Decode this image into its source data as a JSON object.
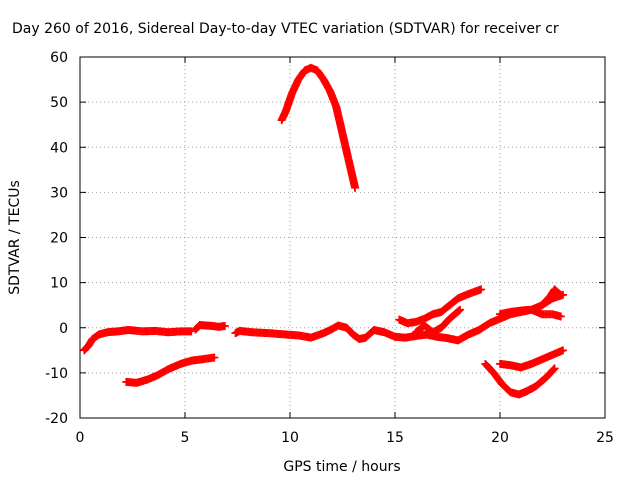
{
  "chart_data": {
    "type": "scatter",
    "title": "Day 260 of 2016, Sidereal Day-to-day VTEC variation (SDTVAR) for receiver cr",
    "xlabel": "GPS time / hours",
    "ylabel": "SDTVAR / TECUs",
    "xlim": [
      0,
      25
    ],
    "ylim": [
      -20,
      60
    ],
    "xticks": [
      "0",
      "5",
      "10",
      "15",
      "20",
      "25"
    ],
    "yticks": [
      "-20",
      "-10",
      "0",
      "10",
      "20",
      "30",
      "40",
      "50",
      "60"
    ],
    "grid": true,
    "marker": "plus",
    "color": "#ff0000",
    "series": [
      {
        "points": [
          [
            0.2,
            -5
          ],
          [
            0.4,
            -4
          ],
          [
            0.6,
            -2.5
          ],
          [
            0.9,
            -1.5
          ],
          [
            1.3,
            -1
          ],
          [
            1.8,
            -0.8
          ],
          [
            2.3,
            -0.5
          ],
          [
            3,
            -0.8
          ],
          [
            3.6,
            -0.7
          ],
          [
            4.2,
            -1
          ],
          [
            4.8,
            -0.8
          ],
          [
            5.3,
            -0.8
          ]
        ]
      },
      {
        "points": [
          [
            5.5,
            -0.4
          ],
          [
            5.7,
            0.6
          ],
          [
            6,
            0.5
          ],
          [
            6.3,
            0.4
          ],
          [
            6.6,
            0.2
          ],
          [
            6.9,
            0.4
          ]
        ]
      },
      {
        "points": [
          [
            7.4,
            -1.2
          ],
          [
            7.6,
            -0.7
          ],
          [
            8.2,
            -1
          ],
          [
            9,
            -1.2
          ],
          [
            9.8,
            -1.5
          ],
          [
            10.4,
            -1.7
          ],
          [
            11,
            -2.2
          ],
          [
            11.6,
            -1.2
          ],
          [
            12.0,
            -0.3
          ],
          [
            12.3,
            0.5
          ],
          [
            12.7,
            0
          ],
          [
            13.0,
            -1.5
          ],
          [
            13.3,
            -2.5
          ],
          [
            13.6,
            -2.2
          ],
          [
            14,
            -0.5
          ],
          [
            14.5,
            -1
          ],
          [
            15,
            -2
          ],
          [
            15.5,
            -2.2
          ],
          [
            16,
            -1.8
          ],
          [
            16.5,
            -1.5
          ],
          [
            17,
            -2
          ],
          [
            17.5,
            -2.3
          ],
          [
            18.0,
            -2.8
          ],
          [
            18.5,
            -1.5
          ],
          [
            19,
            -0.5
          ],
          [
            19.5,
            1
          ],
          [
            20,
            2
          ],
          [
            20.5,
            3
          ],
          [
            21,
            3.5
          ],
          [
            21.5,
            4
          ],
          [
            22,
            3
          ],
          [
            22.5,
            3
          ],
          [
            22.9,
            2.5
          ]
        ]
      },
      {
        "points": [
          [
            9.6,
            46
          ],
          [
            9.8,
            48
          ],
          [
            10.1,
            52
          ],
          [
            10.4,
            55
          ],
          [
            10.7,
            57
          ],
          [
            11.0,
            57.6
          ],
          [
            11.3,
            57
          ],
          [
            11.6,
            55
          ],
          [
            11.9,
            52.5
          ],
          [
            12.2,
            49
          ],
          [
            12.4,
            45
          ],
          [
            12.6,
            41
          ],
          [
            12.8,
            37
          ],
          [
            13.0,
            33
          ],
          [
            13.1,
            31
          ]
        ]
      },
      {
        "points": [
          [
            2.2,
            -12
          ],
          [
            2.7,
            -12.2
          ],
          [
            3.2,
            -11.5
          ],
          [
            3.7,
            -10.5
          ],
          [
            4.2,
            -9.2
          ],
          [
            4.8,
            -8
          ],
          [
            5.3,
            -7.3
          ],
          [
            5.8,
            -7
          ],
          [
            6.4,
            -6.6
          ]
        ]
      },
      {
        "points": [
          [
            15.2,
            1.8
          ],
          [
            15.6,
            1
          ],
          [
            16,
            1.3
          ],
          [
            16.4,
            2
          ],
          [
            16.8,
            3
          ],
          [
            17.2,
            3.5
          ],
          [
            17.6,
            5
          ],
          [
            18,
            6.5
          ],
          [
            18.4,
            7.3
          ],
          [
            18.8,
            8
          ],
          [
            19.1,
            8.5
          ]
        ]
      },
      {
        "points": [
          [
            16.0,
            -1
          ],
          [
            16.4,
            0.5
          ],
          [
            16.8,
            -1
          ],
          [
            17.2,
            0
          ],
          [
            17.6,
            2
          ],
          [
            18.1,
            4
          ]
        ]
      },
      {
        "points": [
          [
            19.3,
            -8
          ],
          [
            19.7,
            -10
          ],
          [
            20.1,
            -12.5
          ],
          [
            20.5,
            -14.3
          ],
          [
            20.9,
            -14.8
          ],
          [
            21.3,
            -14
          ],
          [
            21.7,
            -13
          ],
          [
            22.2,
            -11
          ],
          [
            22.6,
            -9
          ]
        ]
      },
      {
        "points": [
          [
            20.0,
            -8
          ],
          [
            20.5,
            -8.3
          ],
          [
            21,
            -8.8
          ],
          [
            21.5,
            -8
          ],
          [
            22,
            -7
          ],
          [
            22.5,
            -6
          ],
          [
            23,
            -5
          ]
        ]
      },
      {
        "points": [
          [
            20.0,
            3
          ],
          [
            20.5,
            3.5
          ],
          [
            21,
            3.8
          ],
          [
            21.5,
            4
          ],
          [
            22,
            5
          ],
          [
            22.5,
            6.5
          ],
          [
            23,
            7.3
          ]
        ]
      },
      {
        "points": [
          [
            22.0,
            5
          ],
          [
            22.4,
            7
          ],
          [
            22.6,
            8.5
          ],
          [
            22.9,
            7.2
          ]
        ]
      }
    ]
  }
}
